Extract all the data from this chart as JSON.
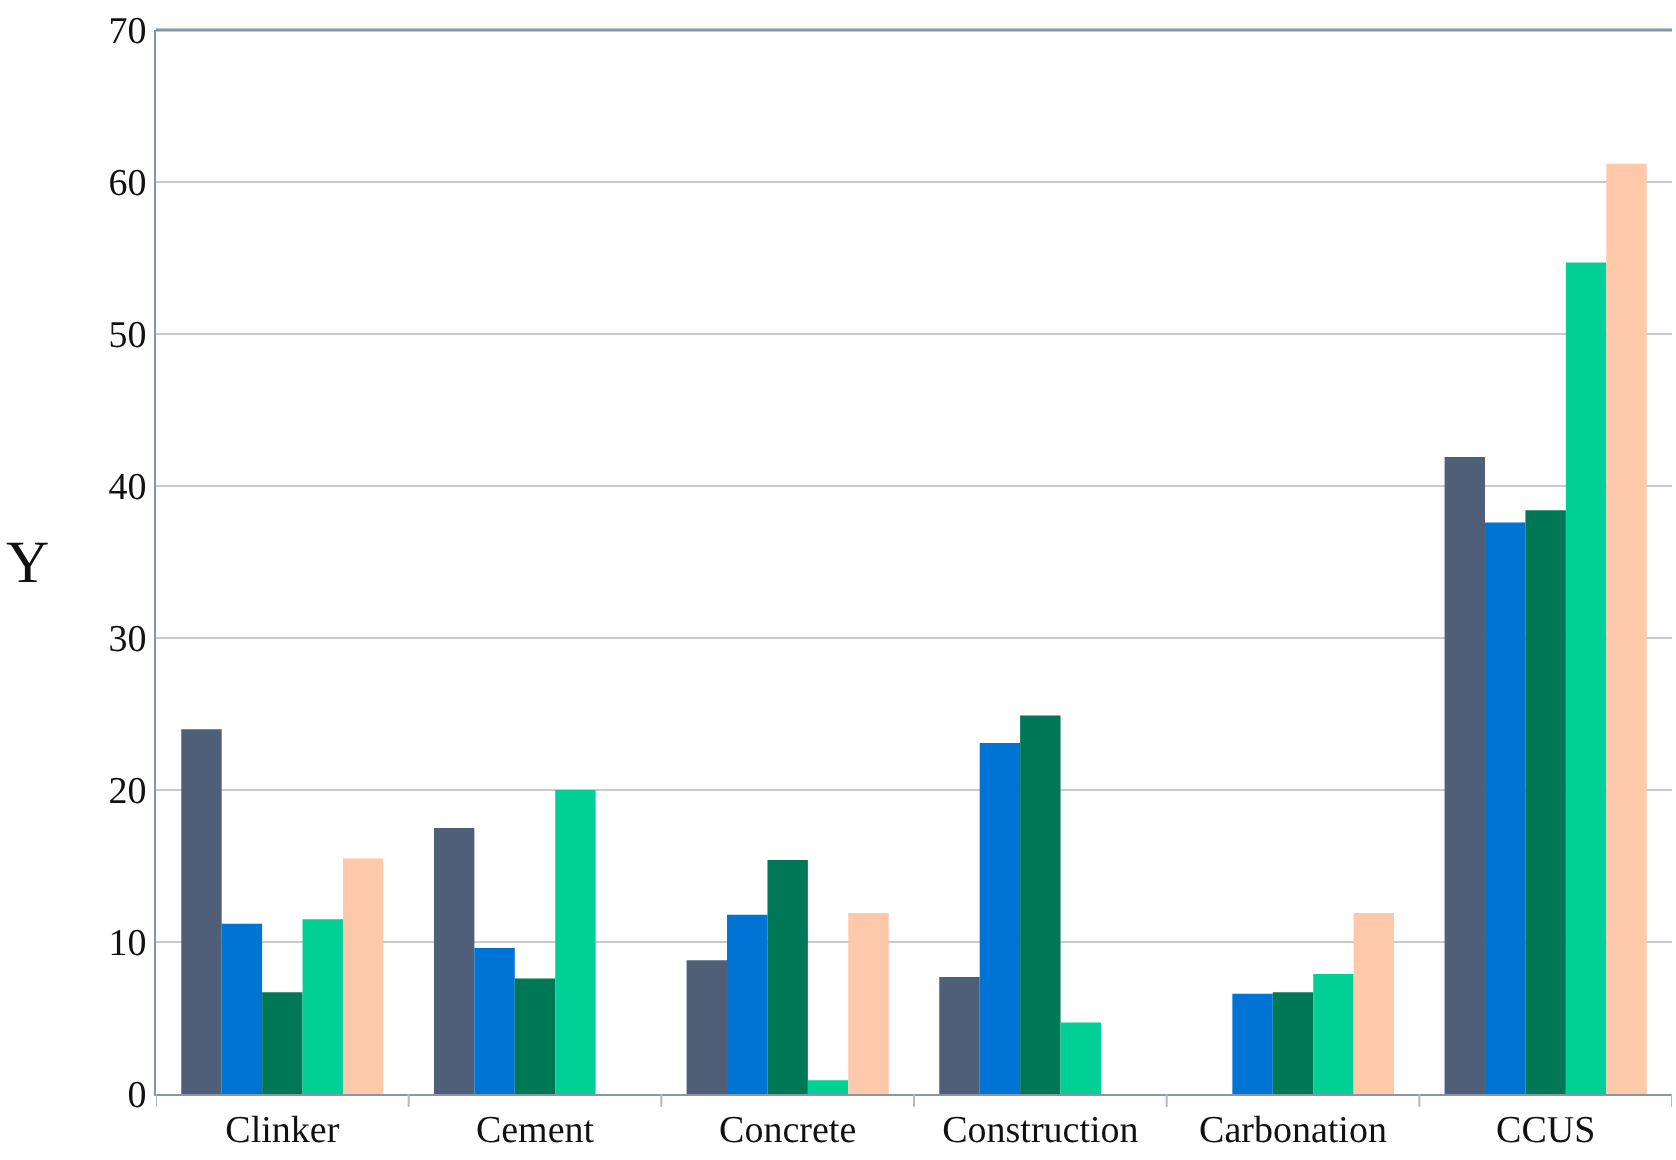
{
  "chart_data": {
    "type": "bar",
    "ylabel": "Y",
    "categories": [
      "Clinker",
      "Cement",
      "Concrete",
      "Construction",
      "Carbonation",
      "CCUS"
    ],
    "series": [
      {
        "color": "#4f5f78",
        "values": [
          24,
          17.5,
          8.8,
          7.7,
          null,
          41.9
        ]
      },
      {
        "color": "#0074d4",
        "values": [
          11.2,
          9.6,
          11.8,
          23.1,
          6.6,
          37.6
        ]
      },
      {
        "color": "#007856",
        "values": [
          6.7,
          7.6,
          15.4,
          24.9,
          6.7,
          38.4
        ]
      },
      {
        "color": "#00d096",
        "values": [
          11.5,
          20.0,
          0.9,
          4.7,
          7.9,
          54.7
        ]
      },
      {
        "color": "#fec8aa",
        "values": [
          15.5,
          null,
          11.9,
          null,
          11.9,
          61.2
        ]
      }
    ],
    "ylim": [
      0,
      70
    ],
    "yticks": [
      0,
      10,
      20,
      30,
      40,
      50,
      60,
      70
    ],
    "grid": "y"
  }
}
